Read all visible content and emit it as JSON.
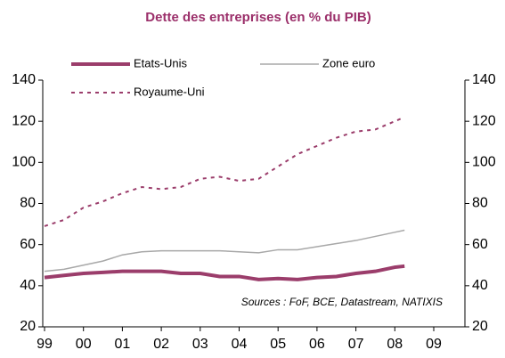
{
  "chart_data": {
    "type": "line",
    "title": "Dette des entreprises (en % du PIB)",
    "annotation": "Sources : FoF, BCE, Datastream, NATIXIS",
    "x": [
      1999,
      1999.5,
      2000,
      2000.5,
      2001,
      2001.5,
      2002,
      2002.5,
      2003,
      2003.5,
      2004,
      2004.5,
      2005,
      2005.5,
      2006,
      2006.5,
      2007,
      2007.5,
      2008,
      2008.25
    ],
    "series": [
      {
        "name": "Etats-Unis",
        "color": "#9b3d6b",
        "style": "solid-thick",
        "values": [
          44,
          45,
          46,
          46.5,
          47,
          47,
          47,
          46,
          46,
          44.5,
          44.5,
          43,
          43.5,
          43,
          44,
          44.5,
          46,
          47,
          49,
          49.5
        ]
      },
      {
        "name": "Zone euro",
        "color": "#a8a8a8",
        "style": "solid",
        "values": [
          47,
          48,
          50,
          52,
          55,
          56.5,
          57,
          57,
          57,
          57,
          56.5,
          56,
          57.5,
          57.5,
          59,
          60.5,
          62,
          64,
          66,
          67
        ]
      },
      {
        "name": "Royaume-Uni",
        "color": "#9b3d6b",
        "style": "dashed",
        "values": [
          69,
          72,
          78,
          81,
          85,
          88,
          87,
          88,
          92,
          93,
          91,
          92,
          98,
          104,
          108,
          112,
          115,
          116,
          120,
          122
        ]
      }
    ],
    "xlim": [
      1999,
      2009.8
    ],
    "xticks": [
      {
        "value": 1999,
        "label": "99"
      },
      {
        "value": 2000,
        "label": "00"
      },
      {
        "value": 2001,
        "label": "01"
      },
      {
        "value": 2002,
        "label": "02"
      },
      {
        "value": 2003,
        "label": "03"
      },
      {
        "value": 2004,
        "label": "04"
      },
      {
        "value": 2005,
        "label": "05"
      },
      {
        "value": 2006,
        "label": "06"
      },
      {
        "value": 2007,
        "label": "07"
      },
      {
        "value": 2008,
        "label": "08"
      },
      {
        "value": 2009,
        "label": "09"
      }
    ],
    "ylim": [
      20,
      140
    ],
    "yticks": [
      20,
      40,
      60,
      80,
      100,
      120,
      140
    ],
    "y2lim": [
      20,
      140
    ],
    "y2ticks": [
      20,
      40,
      60,
      80,
      100,
      120,
      140
    ]
  }
}
